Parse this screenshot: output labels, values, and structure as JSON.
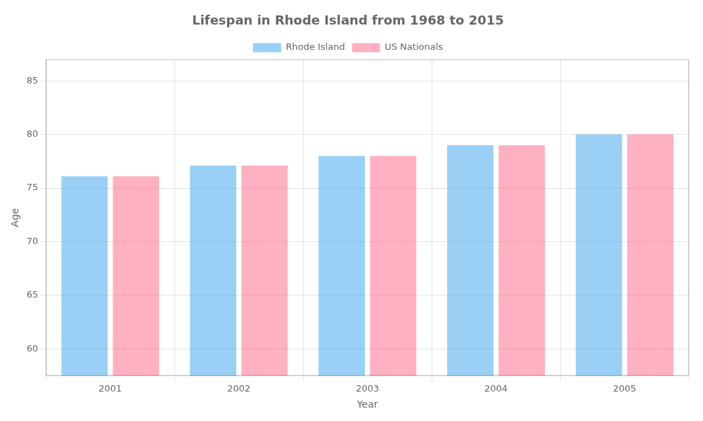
{
  "chart_data": {
    "type": "bar",
    "title": "Lifespan in Rhode Island from 1968 to 2015",
    "x_label": "Year",
    "y_label": "Age",
    "categories": [
      "2001",
      "2002",
      "2003",
      "2004",
      "2005"
    ],
    "series": [
      {
        "name": "Rhode Island",
        "values": [
          76.1,
          77.1,
          78.0,
          79.0,
          80.0
        ]
      },
      {
        "name": "US Nationals",
        "values": [
          76.1,
          77.1,
          78.0,
          79.0,
          80.0
        ]
      }
    ],
    "ylim": [
      57.5,
      87
    ],
    "yticks": [
      60,
      65,
      70,
      75,
      80,
      85
    ],
    "grid": true,
    "legend": "top"
  }
}
